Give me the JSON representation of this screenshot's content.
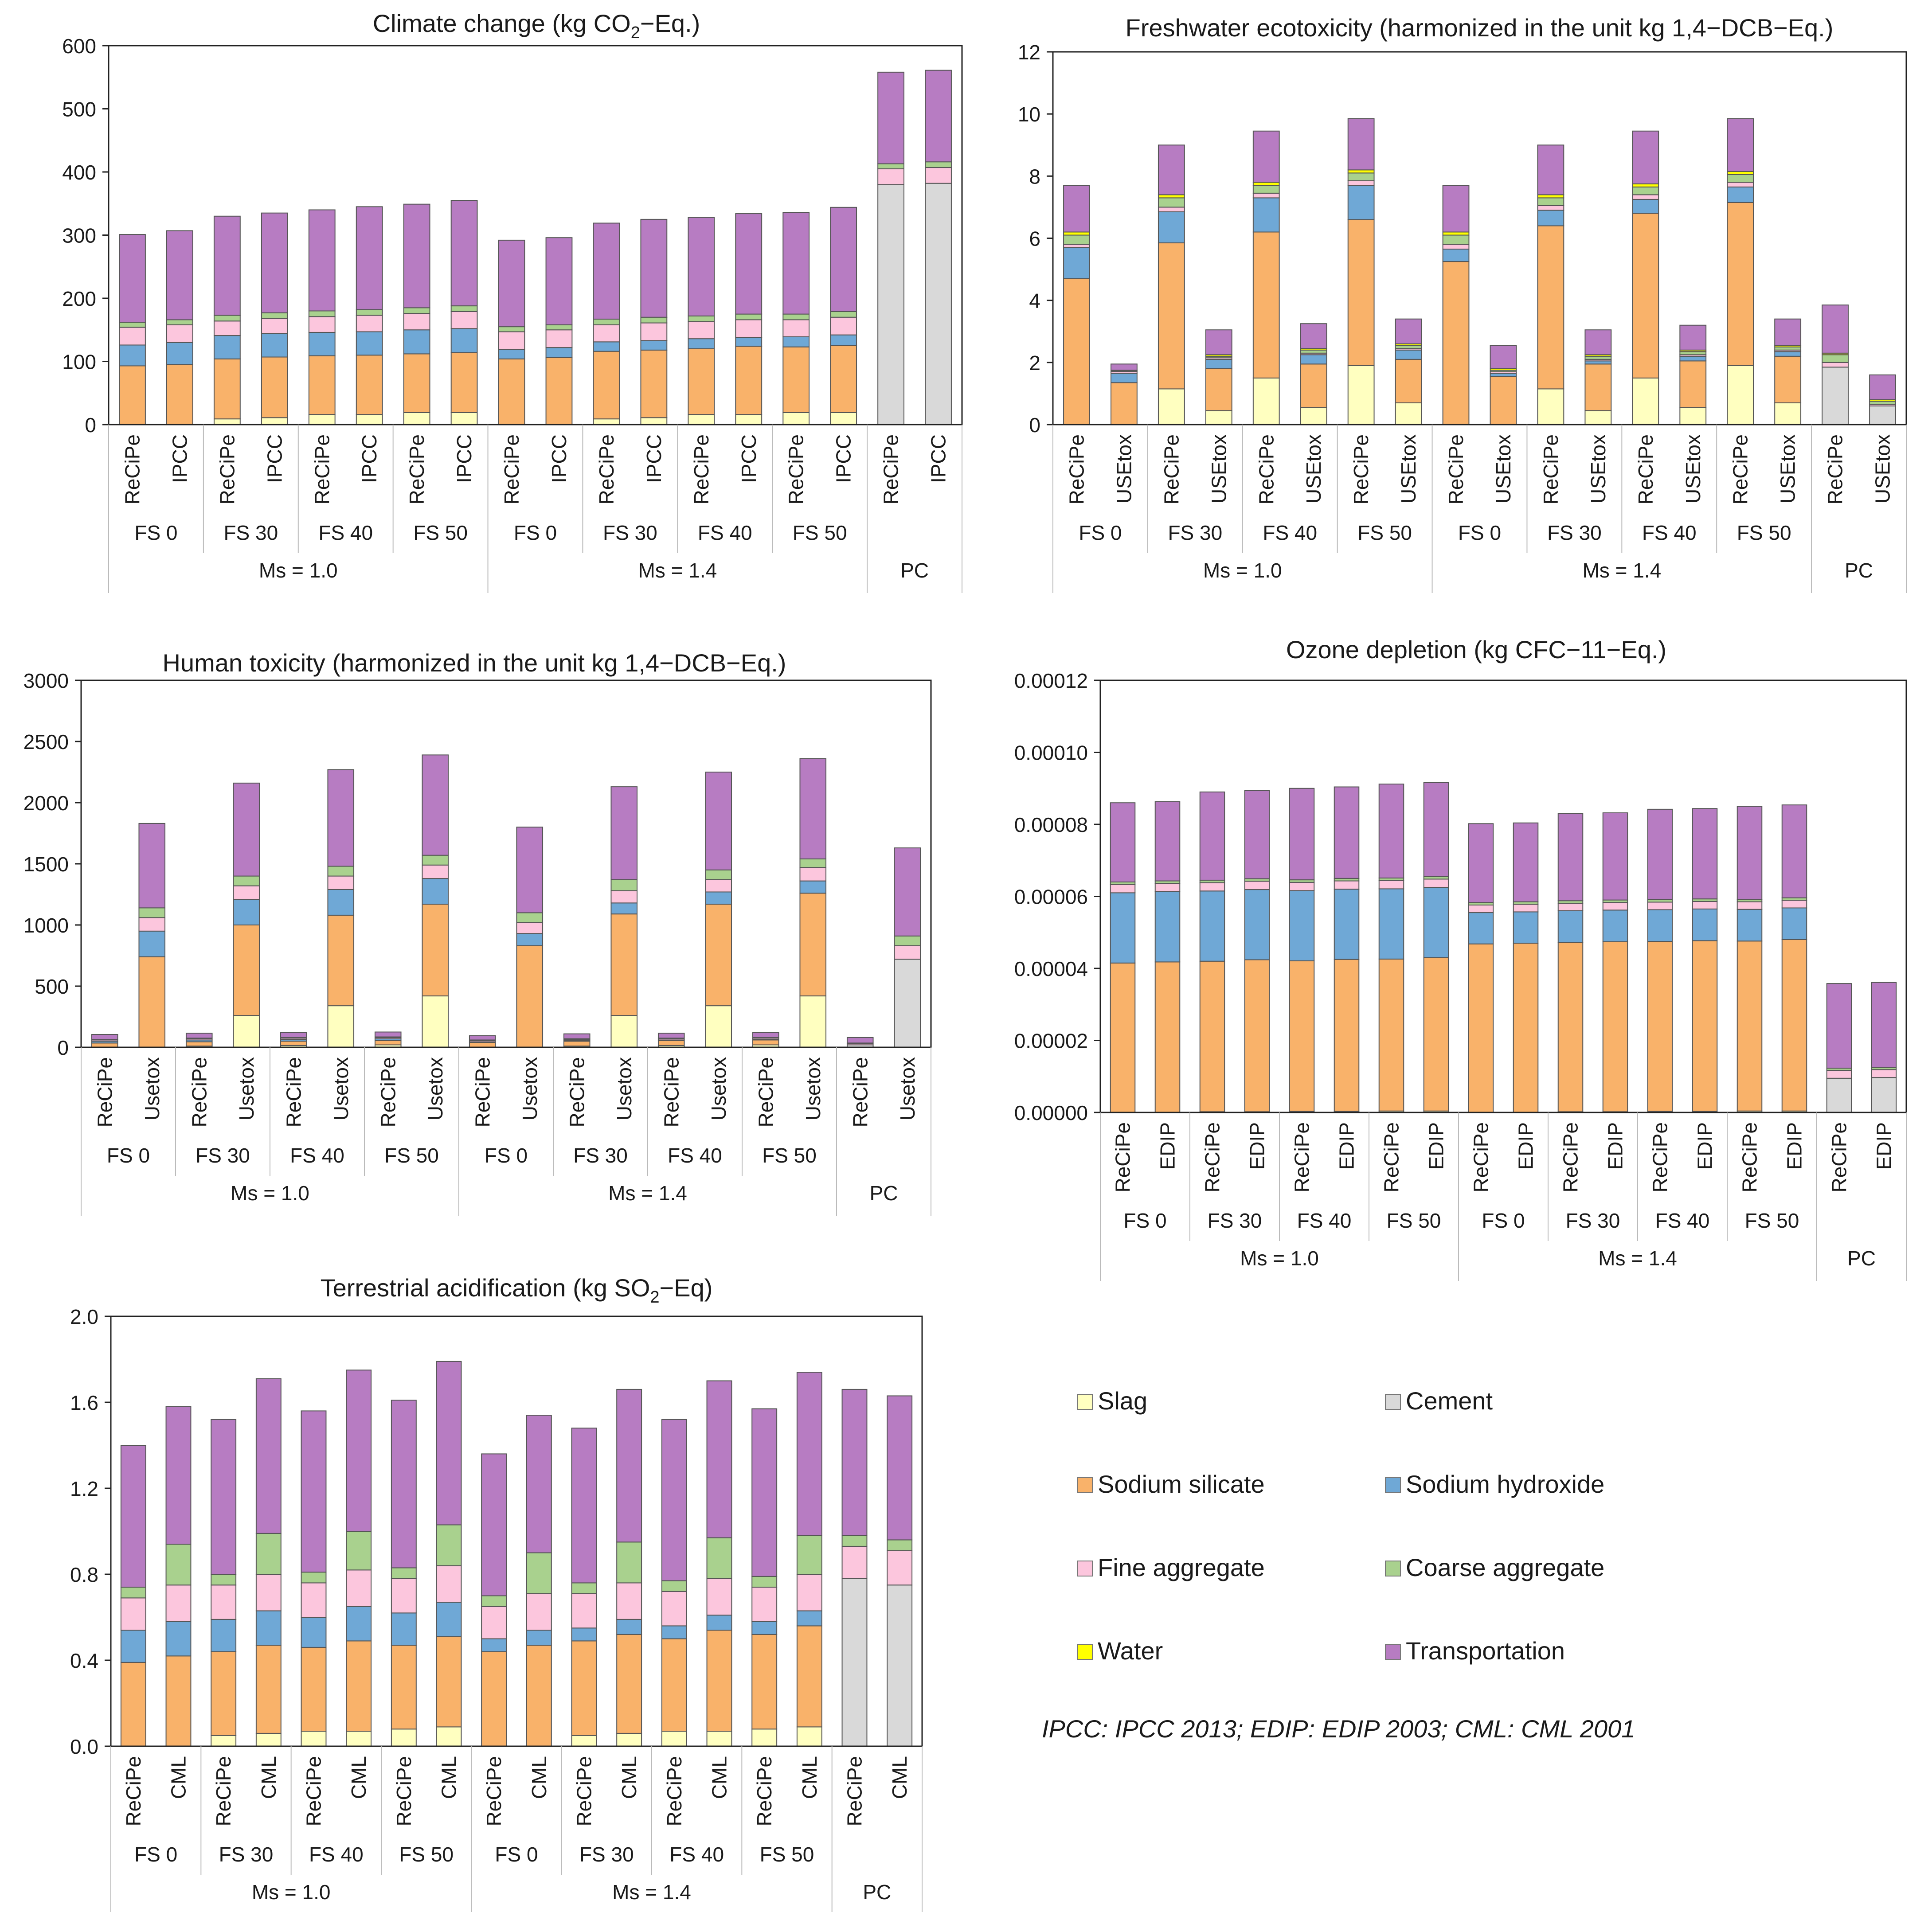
{
  "figure": {
    "legend": {
      "items": [
        {
          "label": "Slag",
          "color": "#ffffc0"
        },
        {
          "label": "Cement",
          "color": "#d9d9d9"
        },
        {
          "label": "Sodium silicate",
          "color": "#f9b26a"
        },
        {
          "label": "Sodium hydroxide",
          "color": "#6fa8d6"
        },
        {
          "label": "Fine aggregate",
          "color": "#fcc6dd"
        },
        {
          "label": "Coarse aggregate",
          "color": "#a9d18e"
        },
        {
          "label": "Water",
          "color": "#ffff00"
        },
        {
          "label": "Transportation",
          "color": "#b77cc2"
        }
      ],
      "note": "IPCC: IPCC 2013; EDIP: EDIP 2003; CML: CML 2001"
    }
  },
  "chart_data": [
    {
      "id": "climate",
      "type": "bar",
      "stacked": true,
      "title_parts": [
        "Climate change (kg CO",
        "2",
        "−Eq.)"
      ],
      "ylim": [
        0,
        600
      ],
      "yticks": [
        "0",
        "100",
        "200",
        "300",
        "400",
        "500",
        "600"
      ],
      "methods": [
        "ReCiPe",
        "IPCC"
      ],
      "fs_groups": [
        "FS 0",
        "FS 30",
        "FS 40",
        "FS 50"
      ],
      "ms_groups": [
        "Ms = 1.0",
        "Ms = 1.4"
      ],
      "pc_label": "PC",
      "series_order": [
        "Slag",
        "Cement",
        "Sodium silicate",
        "Sodium hydroxide",
        "Fine aggregate",
        "Coarse aggregate",
        "Water",
        "Transportation"
      ],
      "bars": [
        [
          0,
          0,
          93,
          33,
          28,
          8,
          0,
          139
        ],
        [
          0,
          0,
          95,
          35,
          28,
          8,
          0,
          141
        ],
        [
          9,
          0,
          95,
          37,
          23,
          9,
          0,
          157
        ],
        [
          11,
          0,
          96,
          37,
          24,
          9,
          0,
          158
        ],
        [
          16,
          0,
          93,
          37,
          25,
          9,
          0,
          160
        ],
        [
          16,
          0,
          94,
          37,
          26,
          9,
          0,
          163
        ],
        [
          19,
          0,
          93,
          38,
          26,
          9,
          0,
          164
        ],
        [
          19,
          0,
          95,
          38,
          27,
          9,
          0,
          167
        ],
        [
          0,
          0,
          104,
          15,
          28,
          8,
          0,
          137
        ],
        [
          0,
          0,
          106,
          16,
          28,
          8,
          0,
          138
        ],
        [
          9,
          0,
          107,
          15,
          27,
          9,
          0,
          152
        ],
        [
          11,
          0,
          107,
          15,
          28,
          9,
          0,
          155
        ],
        [
          16,
          0,
          104,
          16,
          27,
          9,
          0,
          156
        ],
        [
          16,
          0,
          108,
          14,
          28,
          9,
          0,
          159
        ],
        [
          19,
          0,
          104,
          16,
          27,
          9,
          0,
          161
        ],
        [
          19,
          0,
          106,
          17,
          28,
          9,
          0,
          165
        ],
        [
          0,
          380,
          0,
          0,
          25,
          8,
          0,
          145
        ],
        [
          0,
          382,
          0,
          0,
          25,
          9,
          0,
          145
        ]
      ]
    },
    {
      "id": "freshwater",
      "type": "bar",
      "stacked": true,
      "title_parts": [
        "Freshwater ecotoxicity (harmonized in the unit kg 1,4−DCB−Eq.)"
      ],
      "ylim": [
        0,
        12
      ],
      "yticks": [
        "0",
        "2",
        "4",
        "6",
        "8",
        "10",
        "12"
      ],
      "methods": [
        "ReCiPe",
        "USEtox"
      ],
      "fs_groups": [
        "FS 0",
        "FS 30",
        "FS 40",
        "FS 50"
      ],
      "ms_groups": [
        "Ms = 1.0",
        "Ms = 1.4"
      ],
      "pc_label": "PC",
      "series_order": [
        "Slag",
        "Cement",
        "Sodium silicate",
        "Sodium hydroxide",
        "Fine aggregate",
        "Coarse aggregate",
        "Water",
        "Transportation"
      ],
      "bars": [
        [
          0,
          0,
          4.7,
          1.0,
          0.1,
          0.3,
          0.1,
          1.5
        ],
        [
          0,
          0,
          1.35,
          0.3,
          0.05,
          0.03,
          0.02,
          0.2
        ],
        [
          1.15,
          0,
          4.7,
          1.0,
          0.15,
          0.3,
          0.1,
          1.6
        ],
        [
          0.45,
          0,
          1.35,
          0.3,
          0.05,
          0.05,
          0.05,
          0.8
        ],
        [
          1.5,
          0,
          4.7,
          1.1,
          0.15,
          0.25,
          0.1,
          1.65
        ],
        [
          0.55,
          0,
          1.4,
          0.3,
          0.05,
          0.1,
          0.05,
          0.8
        ],
        [
          1.9,
          0,
          4.7,
          1.1,
          0.15,
          0.25,
          0.1,
          1.65
        ],
        [
          0.7,
          0,
          1.4,
          0.3,
          0.05,
          0.1,
          0.05,
          0.8
        ],
        [
          0,
          0,
          5.25,
          0.4,
          0.15,
          0.3,
          0.1,
          1.5
        ],
        [
          0,
          0,
          1.55,
          0.1,
          0.05,
          0.05,
          0.05,
          0.75
        ],
        [
          1.15,
          0,
          5.25,
          0.5,
          0.15,
          0.25,
          0.1,
          1.6
        ],
        [
          0.45,
          0,
          1.5,
          0.1,
          0.05,
          0.1,
          0.05,
          0.8
        ],
        [
          1.5,
          0,
          5.3,
          0.45,
          0.15,
          0.25,
          0.1,
          1.7
        ],
        [
          0.55,
          0,
          1.5,
          0.15,
          0.05,
          0.1,
          0.05,
          0.8
        ],
        [
          1.9,
          0,
          5.25,
          0.5,
          0.15,
          0.25,
          0.1,
          1.7
        ],
        [
          0.7,
          0,
          1.5,
          0.15,
          0.05,
          0.1,
          0.05,
          0.85
        ],
        [
          0,
          1.85,
          0,
          0,
          0.15,
          0.25,
          0.05,
          1.55
        ],
        [
          0,
          0.6,
          0,
          0,
          0.05,
          0.1,
          0.05,
          0.8
        ]
      ]
    },
    {
      "id": "human",
      "type": "bar",
      "stacked": true,
      "title_parts": [
        "Human toxicity (harmonized in the unit kg 1,4−DCB−Eq.)"
      ],
      "ylim": [
        0,
        3000
      ],
      "yticks": [
        "0",
        "500",
        "1000",
        "1500",
        "2000",
        "2500",
        "3000"
      ],
      "methods": [
        "ReCiPe",
        "Usetox"
      ],
      "fs_groups": [
        "FS 0",
        "FS 30",
        "FS 40",
        "FS 50"
      ],
      "ms_groups": [
        "Ms = 1.0",
        "Ms = 1.4"
      ],
      "pc_label": "PC",
      "series_order": [
        "Slag",
        "Cement",
        "Sodium silicate",
        "Sodium hydroxide",
        "Fine aggregate",
        "Coarse aggregate",
        "Water",
        "Transportation"
      ],
      "bars": [
        [
          0,
          0,
          35,
          15,
          10,
          5,
          0,
          40
        ],
        [
          0,
          0,
          740,
          210,
          110,
          80,
          0,
          690
        ],
        [
          10,
          0,
          35,
          15,
          10,
          5,
          0,
          40
        ],
        [
          260,
          0,
          740,
          210,
          110,
          80,
          0,
          760
        ],
        [
          15,
          0,
          35,
          15,
          10,
          5,
          0,
          40
        ],
        [
          340,
          0,
          740,
          210,
          110,
          80,
          0,
          790
        ],
        [
          20,
          0,
          35,
          15,
          10,
          5,
          0,
          40
        ],
        [
          420,
          0,
          750,
          210,
          110,
          80,
          0,
          820
        ],
        [
          0,
          0,
          40,
          5,
          10,
          5,
          0,
          35
        ],
        [
          0,
          0,
          830,
          100,
          90,
          80,
          0,
          700
        ],
        [
          10,
          0,
          40,
          5,
          10,
          5,
          0,
          40
        ],
        [
          260,
          0,
          830,
          90,
          100,
          90,
          0,
          760
        ],
        [
          15,
          0,
          40,
          5,
          10,
          5,
          0,
          40
        ],
        [
          340,
          0,
          830,
          100,
          100,
          80,
          0,
          800
        ],
        [
          20,
          0,
          40,
          5,
          10,
          5,
          0,
          40
        ],
        [
          420,
          0,
          840,
          100,
          110,
          70,
          0,
          820
        ],
        [
          0,
          20,
          0,
          0,
          10,
          5,
          0,
          45
        ],
        [
          0,
          720,
          0,
          0,
          110,
          80,
          0,
          720
        ]
      ]
    },
    {
      "id": "ozone",
      "type": "bar",
      "stacked": true,
      "title_parts": [
        "Ozone depletion (kg CFC−11−Eq.)"
      ],
      "ylim": [
        0,
        0.00012
      ],
      "yticks": [
        "0.00000",
        "0.00002",
        "0.00004",
        "0.00006",
        "0.00008",
        "0.00010",
        "0.00012"
      ],
      "methods": [
        "ReCiPe",
        "EDIP"
      ],
      "fs_groups": [
        "FS 0",
        "FS 30",
        "FS 40",
        "FS 50"
      ],
      "ms_groups": [
        "Ms = 1.0",
        "Ms = 1.4"
      ],
      "pc_label": "PC",
      "series_order": [
        "Slag",
        "Cement",
        "Sodium silicate",
        "Sodium hydroxide",
        "Fine aggregate",
        "Coarse aggregate",
        "Water",
        "Transportation"
      ],
      "bars": [
        [
          0,
          0,
          4.15e-05,
          1.95e-05,
          2.3e-06,
          7e-07,
          0,
          2.2e-05
        ],
        [
          0,
          0,
          4.18e-05,
          1.95e-05,
          2.3e-06,
          7e-07,
          0,
          2.2e-05
        ],
        [
          2e-07,
          0,
          4.18e-05,
          1.95e-05,
          2.3e-06,
          7e-07,
          0,
          2.45e-05
        ],
        [
          2e-07,
          0,
          4.22e-05,
          1.95e-05,
          2.3e-06,
          7e-07,
          0,
          2.45e-05
        ],
        [
          3e-07,
          0,
          4.18e-05,
          1.95e-05,
          2.3e-06,
          7e-07,
          0,
          2.54e-05
        ],
        [
          3e-07,
          0,
          4.22e-05,
          1.95e-05,
          2.3e-06,
          7e-07,
          0,
          2.54e-05
        ],
        [
          4e-07,
          0,
          4.22e-05,
          1.95e-05,
          2.3e-06,
          7e-07,
          0,
          2.61e-05
        ],
        [
          4e-07,
          0,
          4.26e-05,
          1.95e-05,
          2.3e-06,
          7e-07,
          0,
          2.61e-05
        ],
        [
          0,
          0,
          4.68e-05,
          8.7e-06,
          2.1e-06,
          7e-07,
          0,
          2.19e-05
        ],
        [
          0,
          0,
          4.7e-05,
          8.7e-06,
          2.1e-06,
          7e-07,
          0,
          2.19e-05
        ],
        [
          2e-07,
          0,
          4.7e-05,
          8.8e-06,
          2.1e-06,
          7e-07,
          0,
          2.42e-05
        ],
        [
          2e-07,
          0,
          4.72e-05,
          8.8e-06,
          2.1e-06,
          7e-07,
          0,
          2.42e-05
        ],
        [
          3e-07,
          0,
          4.72e-05,
          8.8e-06,
          2.1e-06,
          7e-07,
          0,
          2.51e-05
        ],
        [
          3e-07,
          0,
          4.74e-05,
          8.8e-06,
          2.1e-06,
          7e-07,
          0,
          2.51e-05
        ],
        [
          4e-07,
          0,
          4.72e-05,
          8.8e-06,
          2.1e-06,
          7e-07,
          0,
          2.58e-05
        ],
        [
          4e-07,
          0,
          4.76e-05,
          8.8e-06,
          2.1e-06,
          7e-07,
          0,
          2.58e-05
        ],
        [
          0,
          9.5e-06,
          0,
          0,
          2.2e-06,
          6e-07,
          0,
          2.35e-05
        ],
        [
          0,
          9.7e-06,
          0,
          0,
          2.2e-06,
          6e-07,
          0,
          2.36e-05
        ]
      ]
    },
    {
      "id": "acid",
      "type": "bar",
      "stacked": true,
      "title_parts": [
        "Terrestrial acidification (kg SO",
        "2",
        "−Eq)"
      ],
      "ylim": [
        0,
        2.0
      ],
      "yticks": [
        "0.0",
        "0.4",
        "0.8",
        "1.2",
        "1.6",
        "2.0"
      ],
      "methods": [
        "ReCiPe",
        "CML"
      ],
      "fs_groups": [
        "FS 0",
        "FS 30",
        "FS 40",
        "FS 50"
      ],
      "ms_groups": [
        "Ms = 1.0",
        "Ms = 1.4"
      ],
      "pc_label": "PC",
      "series_order": [
        "Slag",
        "Cement",
        "Sodium silicate",
        "Sodium hydroxide",
        "Fine aggregate",
        "Coarse aggregate",
        "Water",
        "Transportation"
      ],
      "bars": [
        [
          0,
          0,
          0.39,
          0.15,
          0.15,
          0.05,
          0,
          0.66
        ],
        [
          0,
          0,
          0.42,
          0.16,
          0.17,
          0.19,
          0,
          0.64
        ],
        [
          0.05,
          0,
          0.39,
          0.15,
          0.16,
          0.05,
          0,
          0.72
        ],
        [
          0.06,
          0,
          0.41,
          0.16,
          0.17,
          0.19,
          0,
          0.72
        ],
        [
          0.07,
          0,
          0.39,
          0.14,
          0.16,
          0.05,
          0,
          0.75
        ],
        [
          0.07,
          0,
          0.42,
          0.16,
          0.17,
          0.18,
          0,
          0.75
        ],
        [
          0.08,
          0,
          0.39,
          0.15,
          0.16,
          0.05,
          0,
          0.78
        ],
        [
          0.09,
          0,
          0.42,
          0.16,
          0.17,
          0.19,
          0,
          0.76
        ],
        [
          0,
          0,
          0.44,
          0.06,
          0.15,
          0.05,
          0,
          0.66
        ],
        [
          0,
          0,
          0.47,
          0.07,
          0.17,
          0.19,
          0,
          0.64
        ],
        [
          0.05,
          0,
          0.44,
          0.06,
          0.16,
          0.05,
          0,
          0.72
        ],
        [
          0.06,
          0,
          0.46,
          0.07,
          0.17,
          0.19,
          0,
          0.71
        ],
        [
          0.07,
          0,
          0.43,
          0.06,
          0.16,
          0.05,
          0,
          0.75
        ],
        [
          0.07,
          0,
          0.47,
          0.07,
          0.17,
          0.19,
          0,
          0.73
        ],
        [
          0.08,
          0,
          0.44,
          0.06,
          0.16,
          0.05,
          0,
          0.78
        ],
        [
          0.09,
          0,
          0.47,
          0.07,
          0.17,
          0.18,
          0,
          0.76
        ],
        [
          0,
          0.78,
          0,
          0,
          0.15,
          0.05,
          0,
          0.68
        ],
        [
          0,
          0.75,
          0,
          0,
          0.16,
          0.05,
          0,
          0.67
        ]
      ]
    }
  ]
}
